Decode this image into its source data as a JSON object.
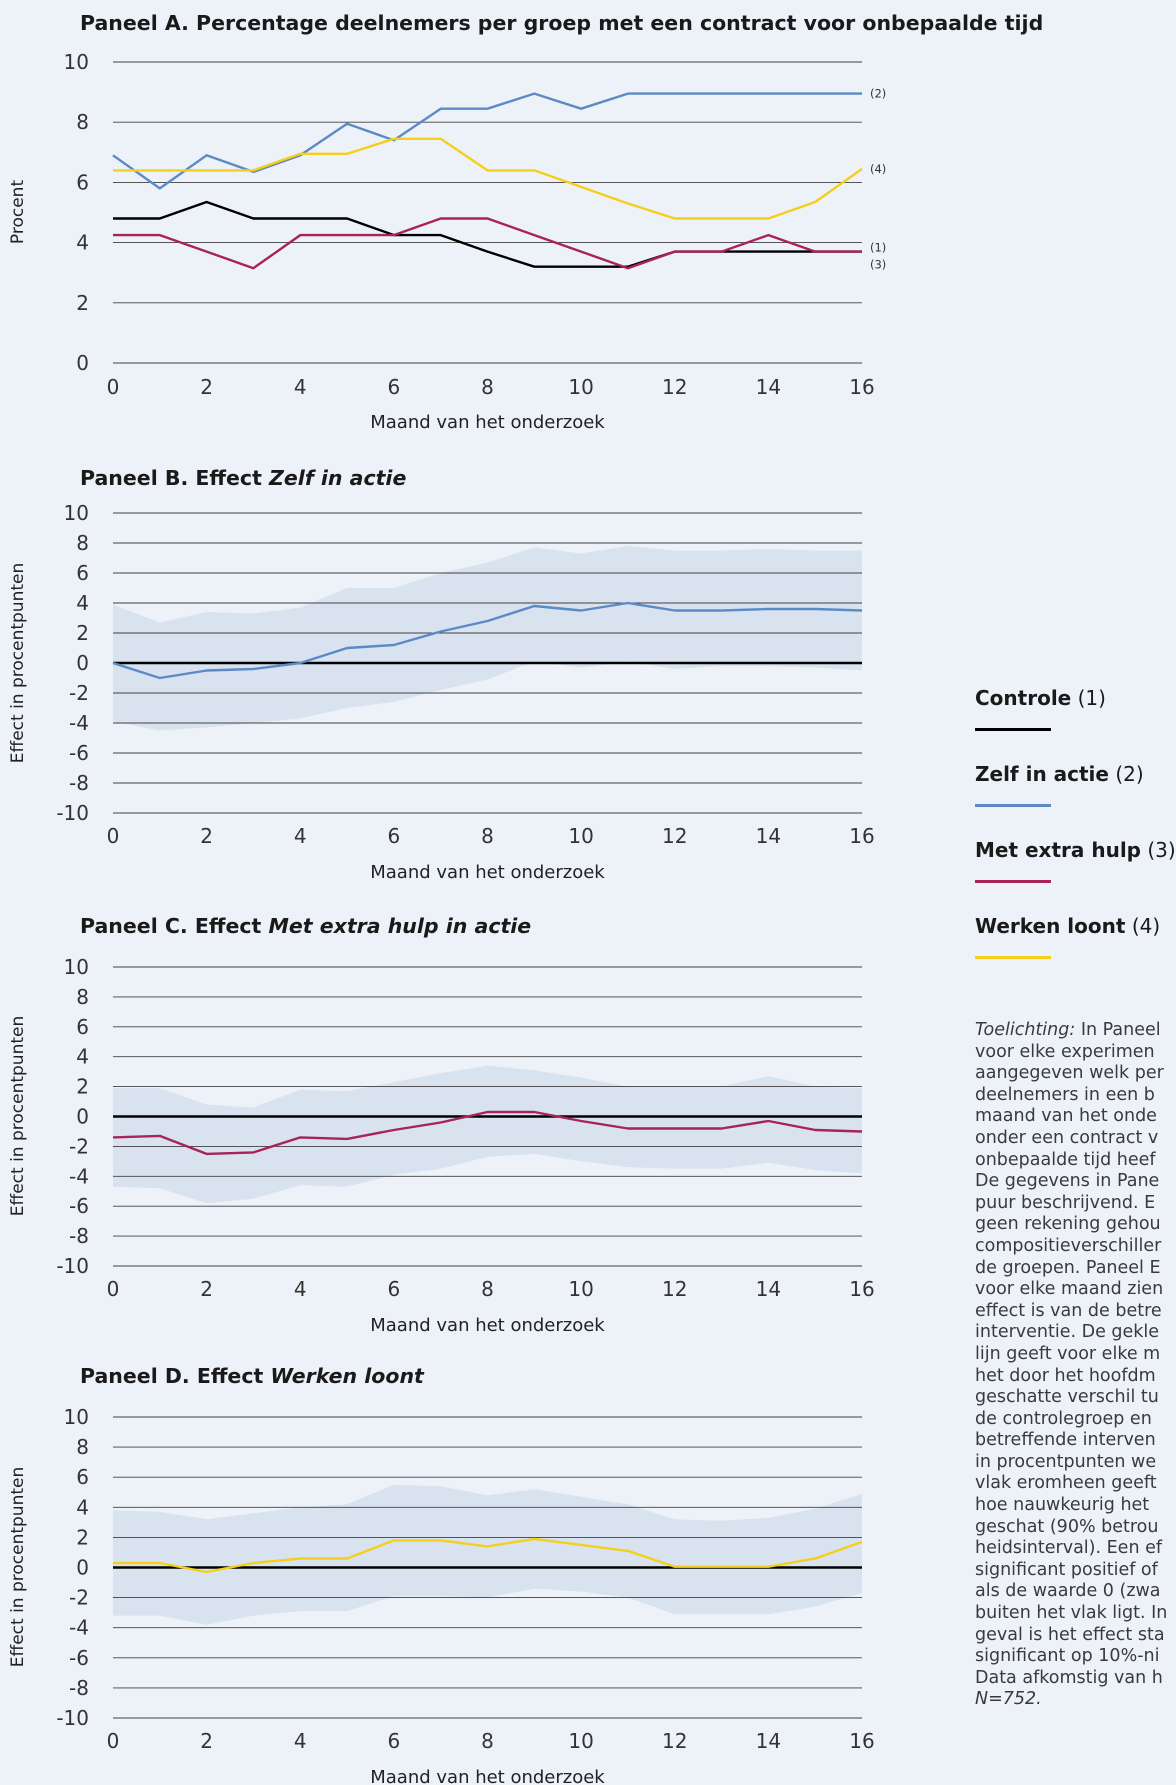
{
  "colors": {
    "controle": "#000000",
    "zelf": "#5b8ac7",
    "hulp": "#a8235a",
    "werken": "#f5cf1b",
    "band": "#d9e3ef",
    "grid": "#404040"
  },
  "legend": {
    "items": [
      {
        "name": "Controle",
        "num": "(1)",
        "color": "#000000"
      },
      {
        "name": "Zelf in actie",
        "num": "(2)",
        "color": "#5b8ac7"
      },
      {
        "name": "Met extra hulp",
        "num": "(3)",
        "color": "#a8235a"
      },
      {
        "name": "Werken loont",
        "num": "(4)",
        "color": "#f5cf1b"
      }
    ]
  },
  "note": {
    "label": "Toelichting:",
    "lines": [
      " In Paneel",
      "voor elke experimen",
      "aangegeven welk per",
      "deelnemers in een b",
      "maand van het onde",
      "onder een contract v",
      "onbepaalde tijd heef",
      "De gegevens in Pane",
      "puur beschrijvend. E",
      "geen rekening gehou",
      "compositieverschiller",
      "de groepen. Paneel E",
      "voor elke maand zien",
      "effect is van de betre",
      "interventie. De gekle",
      "lijn geeft voor elke m",
      "het door het hoofdm",
      "geschatte verschil tu",
      "de controlegroep en",
      "betreffende interven",
      "in procentpunten we",
      "vlak eromheen geeft",
      "hoe nauwkeurig het",
      "geschat (90% betrou",
      "heidsinterval). Een ef",
      "significant positief of",
      "als de waarde 0 (zwa",
      "buiten het vlak ligt. In",
      "geval is het effect sta",
      "significant op 10%-ni",
      "Data afkomstig van h",
      "N=752."
    ]
  },
  "chart_data": [
    {
      "type": "line",
      "title_prefix": "Paneel A. Percentage deelnemers per groep met een contract voor onbepaalde tijd",
      "title_italic": "",
      "xlabel": "Maand van het onderzoek",
      "ylabel": "Procent",
      "xlim": [
        0,
        16
      ],
      "ylim": [
        0,
        10
      ],
      "xticks": [
        "0",
        "2",
        "4",
        "6",
        "8",
        "10",
        "12",
        "14",
        "16"
      ],
      "yticks": [
        "0",
        "2",
        "4",
        "6",
        "8",
        "10"
      ],
      "x": [
        0,
        1,
        2,
        3,
        4,
        5,
        6,
        7,
        8,
        9,
        10,
        11,
        12,
        13,
        14,
        15,
        16
      ],
      "series": [
        {
          "name": "(1)",
          "color": "#000000",
          "values": [
            4.8,
            4.8,
            5.35,
            4.8,
            4.8,
            4.8,
            4.25,
            4.25,
            3.7,
            3.2,
            3.2,
            3.2,
            3.7,
            3.7,
            3.7,
            3.7,
            3.7
          ]
        },
        {
          "name": "(2)",
          "color": "#5b8ac7",
          "values": [
            6.9,
            5.8,
            6.9,
            6.35,
            6.9,
            7.95,
            7.4,
            8.45,
            8.45,
            8.95,
            8.45,
            8.95,
            8.95,
            8.95,
            8.95,
            8.95,
            8.95
          ]
        },
        {
          "name": "(3)",
          "color": "#a8235a",
          "values": [
            4.25,
            4.25,
            3.7,
            3.15,
            4.25,
            4.25,
            4.25,
            4.8,
            4.8,
            4.25,
            3.7,
            3.15,
            3.7,
            3.7,
            4.25,
            3.7,
            3.7
          ]
        },
        {
          "name": "(4)",
          "color": "#f5cf1b",
          "values": [
            6.4,
            6.4,
            6.4,
            6.4,
            6.95,
            6.95,
            7.45,
            7.45,
            6.4,
            6.4,
            5.85,
            5.3,
            4.8,
            4.8,
            4.8,
            5.35,
            6.45
          ]
        }
      ],
      "end_labels": [
        "(2)",
        "(4)",
        "(1)",
        "(3)"
      ]
    },
    {
      "type": "line",
      "title_prefix": "Paneel B. Effect ",
      "title_italic": "Zelf in actie",
      "xlabel": "Maand van het onderzoek",
      "ylabel": "Effect in procentpunten",
      "xlim": [
        0,
        16
      ],
      "ylim": [
        -10,
        10
      ],
      "xticks": [
        "0",
        "2",
        "4",
        "6",
        "8",
        "10",
        "12",
        "14",
        "16"
      ],
      "yticks": [
        "-10",
        "-8",
        "-6",
        "-4",
        "-2",
        "0",
        "2",
        "4",
        "6",
        "8",
        "10"
      ],
      "x": [
        0,
        1,
        2,
        3,
        4,
        5,
        6,
        7,
        8,
        9,
        10,
        11,
        12,
        13,
        14,
        15,
        16
      ],
      "series": [
        {
          "name": "Zelf in actie",
          "color": "#5b8ac7",
          "values": [
            0,
            -1.0,
            -0.5,
            -0.4,
            0,
            1.0,
            1.2,
            2.1,
            2.8,
            3.8,
            3.5,
            4.0,
            3.5,
            3.5,
            3.6,
            3.6,
            3.5
          ]
        }
      ],
      "band_upper": [
        3.9,
        2.7,
        3.4,
        3.3,
        3.7,
        5.0,
        5.0,
        6.0,
        6.7,
        7.7,
        7.3,
        7.8,
        7.5,
        7.5,
        7.6,
        7.5,
        7.5
      ],
      "band_lower": [
        -3.9,
        -4.5,
        -4.3,
        -4.0,
        -3.7,
        -3.0,
        -2.6,
        -1.8,
        -1.1,
        0.1,
        -0.3,
        0.1,
        -0.4,
        -0.2,
        -0.2,
        -0.3,
        -0.5
      ]
    },
    {
      "type": "line",
      "title_prefix": "Paneel C. Effect ",
      "title_italic": "Met extra hulp in actie",
      "xlabel": "Maand van het onderzoek",
      "ylabel": "Effect in procentpunten",
      "xlim": [
        0,
        16
      ],
      "ylim": [
        -10,
        10
      ],
      "xticks": [
        "0",
        "2",
        "4",
        "6",
        "8",
        "10",
        "12",
        "14",
        "16"
      ],
      "yticks": [
        "-10",
        "-8",
        "-6",
        "-4",
        "-2",
        "0",
        "2",
        "4",
        "6",
        "8",
        "10"
      ],
      "x": [
        0,
        1,
        2,
        3,
        4,
        5,
        6,
        7,
        8,
        9,
        10,
        11,
        12,
        13,
        14,
        15,
        16
      ],
      "series": [
        {
          "name": "Met extra hulp",
          "color": "#a8235a",
          "values": [
            -1.4,
            -1.3,
            -2.5,
            -2.4,
            -1.4,
            -1.5,
            -0.9,
            -0.4,
            0.3,
            0.3,
            -0.3,
            -0.8,
            -0.8,
            -0.8,
            -0.3,
            -0.9,
            -1.0
          ]
        }
      ],
      "band_upper": [
        1.9,
        1.9,
        0.8,
        0.6,
        1.8,
        1.7,
        2.3,
        2.9,
        3.4,
        3.1,
        2.6,
        2.0,
        2.0,
        2.0,
        2.7,
        2.0,
        1.9
      ],
      "band_lower": [
        -4.7,
        -4.8,
        -5.8,
        -5.5,
        -4.6,
        -4.7,
        -3.9,
        -3.5,
        -2.7,
        -2.5,
        -3.0,
        -3.4,
        -3.5,
        -3.5,
        -3.1,
        -3.6,
        -3.8
      ]
    },
    {
      "type": "line",
      "title_prefix": "Paneel D. Effect ",
      "title_italic": "Werken loont",
      "xlabel": "Maand van het onderzoek",
      "ylabel": "Effect in procentpunten",
      "xlim": [
        0,
        16
      ],
      "ylim": [
        -10,
        10
      ],
      "xticks": [
        "0",
        "2",
        "4",
        "6",
        "8",
        "10",
        "12",
        "14",
        "16"
      ],
      "yticks": [
        "-10",
        "-8",
        "-6",
        "-4",
        "-2",
        "0",
        "2",
        "4",
        "6",
        "8",
        "10"
      ],
      "x": [
        0,
        1,
        2,
        3,
        4,
        5,
        6,
        7,
        8,
        9,
        10,
        11,
        12,
        13,
        14,
        15,
        16
      ],
      "series": [
        {
          "name": "Werken loont",
          "color": "#f5cf1b",
          "values": [
            0.3,
            0.3,
            -0.3,
            0.3,
            0.6,
            0.6,
            1.8,
            1.8,
            1.4,
            1.9,
            1.5,
            1.1,
            0.05,
            0.05,
            0.05,
            0.6,
            1.7
          ]
        }
      ],
      "band_upper": [
        3.8,
        3.7,
        3.2,
        3.6,
        4.0,
        4.2,
        5.5,
        5.4,
        4.8,
        5.2,
        4.7,
        4.2,
        3.2,
        3.1,
        3.3,
        3.9,
        4.9
      ],
      "band_lower": [
        -3.2,
        -3.2,
        -3.8,
        -3.2,
        -2.9,
        -2.9,
        -1.9,
        -1.9,
        -2.0,
        -1.4,
        -1.6,
        -2.0,
        -3.1,
        -3.1,
        -3.1,
        -2.6,
        -1.7
      ]
    }
  ]
}
